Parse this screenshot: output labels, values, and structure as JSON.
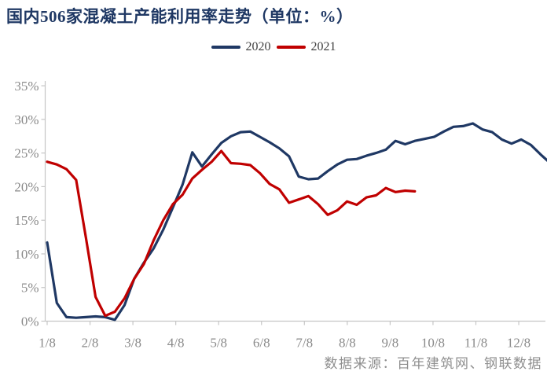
{
  "page": {
    "title": "国内506家混凝土产能利用率走势（单位：%）",
    "source_note": "数据来源：百年建筑网、钢联数据"
  },
  "legend": [
    {
      "label": "2020",
      "color": "#1f3864"
    },
    {
      "label": "2021",
      "color": "#c00000"
    }
  ],
  "chart_data": {
    "type": "line",
    "title": "国内506家混凝土产能利用率走势（单位：%）",
    "unit": "%",
    "grid": false,
    "legend_position": "top-center",
    "x_axis": {
      "label": "",
      "tick_labels": [
        "1/8",
        "2/8",
        "3/8",
        "4/8",
        "5/8",
        "6/8",
        "7/8",
        "8/8",
        "9/8",
        "10/8",
        "11/8",
        "12/8"
      ],
      "sampling": "weekly"
    },
    "y_axis": {
      "label": "",
      "min": 0,
      "max": 35,
      "step": 5,
      "tick_labels": [
        "0%",
        "5%",
        "10%",
        "15%",
        "20%",
        "25%",
        "30%",
        "35%"
      ]
    },
    "series": [
      {
        "name": "2020",
        "color": "#1f3864",
        "week_values": [
          11.7,
          2.7,
          0.6,
          0.5,
          0.6,
          0.7,
          0.6,
          0.2,
          2.4,
          6.3,
          8.7,
          10.8,
          13.6,
          16.9,
          20.3,
          25.1,
          23.0,
          24.8,
          26.5,
          27.5,
          28.1,
          28.2,
          27.4,
          26.6,
          25.7,
          24.5,
          21.5,
          21.1,
          21.2,
          22.3,
          23.3,
          24.0,
          24.1,
          24.6,
          25.0,
          25.5,
          26.8,
          26.3,
          26.8,
          27.1,
          27.4,
          28.2,
          28.9,
          29.0,
          29.4,
          28.5,
          28.1,
          27.0,
          26.4,
          27.0,
          26.2,
          24.8,
          23.5
        ]
      },
      {
        "name": "2021",
        "color": "#c00000",
        "week_values": [
          23.7,
          23.3,
          22.6,
          21.0,
          12.5,
          3.6,
          0.8,
          1.4,
          3.4,
          6.3,
          8.5,
          12.0,
          15.0,
          17.4,
          18.8,
          21.2,
          22.5,
          23.7,
          25.3,
          23.5,
          23.4,
          23.2,
          22.0,
          20.4,
          19.6,
          17.6,
          18.1,
          18.6,
          17.4,
          15.8,
          16.5,
          17.8,
          17.3,
          18.4,
          18.7,
          19.8,
          19.2,
          19.4,
          19.3
        ]
      }
    ],
    "source": "数据来源：百年建筑网、钢联数据"
  }
}
